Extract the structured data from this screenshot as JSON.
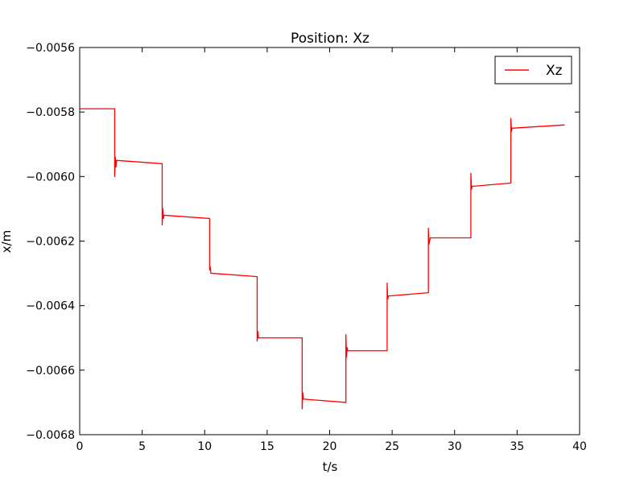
{
  "chart_data": {
    "type": "line",
    "title": "Position: Xz",
    "xlabel": "t/s",
    "ylabel": "x/m",
    "xlim": [
      0,
      40
    ],
    "ylim": [
      -0.0068,
      -0.0056
    ],
    "grid": false,
    "legend_position": "top-right",
    "x_ticks": [
      0,
      5,
      10,
      15,
      20,
      25,
      30,
      35,
      40
    ],
    "x_tick_labels": [
      "0",
      "5",
      "10",
      "15",
      "20",
      "25",
      "30",
      "35",
      "40"
    ],
    "y_ticks": [
      -0.0056,
      -0.0058,
      -0.006,
      -0.0062,
      -0.0064,
      -0.0066,
      -0.0068
    ],
    "y_tick_labels": [
      "−0.0056",
      "−0.0058",
      "−0.0060",
      "−0.0062",
      "−0.0064",
      "−0.0066",
      "−0.0068"
    ],
    "series": [
      {
        "name": "Xz",
        "color": "#ff0000",
        "x": [
          0.0,
          2.8,
          2.8,
          2.85,
          2.9,
          2.95,
          3.0,
          6.6,
          6.6,
          6.65,
          6.7,
          6.75,
          6.8,
          10.4,
          10.4,
          10.45,
          10.5,
          10.55,
          10.6,
          14.2,
          14.2,
          14.25,
          14.3,
          14.35,
          14.4,
          17.8,
          17.8,
          17.85,
          17.9,
          17.95,
          18.0,
          21.3,
          21.3,
          21.35,
          21.4,
          21.45,
          21.5,
          24.6,
          24.6,
          24.65,
          24.7,
          24.75,
          24.8,
          27.9,
          27.9,
          27.95,
          28.0,
          28.05,
          28.1,
          31.3,
          31.3,
          31.35,
          31.4,
          31.45,
          31.5,
          34.5,
          34.5,
          34.55,
          34.6,
          34.65,
          34.7,
          38.8
        ],
        "y": [
          -0.00579,
          -0.00579,
          -0.006,
          -0.00594,
          -0.00597,
          -0.00595,
          -0.00595,
          -0.00596,
          -0.00615,
          -0.0061,
          -0.00613,
          -0.00612,
          -0.00612,
          -0.00613,
          -0.00629,
          -0.00628,
          -0.0063,
          -0.0063,
          -0.0063,
          -0.00631,
          -0.00651,
          -0.00648,
          -0.0065,
          -0.0065,
          -0.0065,
          -0.0065,
          -0.00672,
          -0.00667,
          -0.00669,
          -0.00669,
          -0.00669,
          -0.0067,
          -0.00649,
          -0.00656,
          -0.00653,
          -0.00654,
          -0.00654,
          -0.00654,
          -0.00633,
          -0.00638,
          -0.00637,
          -0.00637,
          -0.00637,
          -0.00636,
          -0.00616,
          -0.00621,
          -0.0062,
          -0.00619,
          -0.00619,
          -0.00619,
          -0.00599,
          -0.00604,
          -0.00603,
          -0.00603,
          -0.00603,
          -0.00602,
          -0.00582,
          -0.00586,
          -0.00585,
          -0.00585,
          -0.00585,
          -0.00584
        ]
      }
    ]
  }
}
